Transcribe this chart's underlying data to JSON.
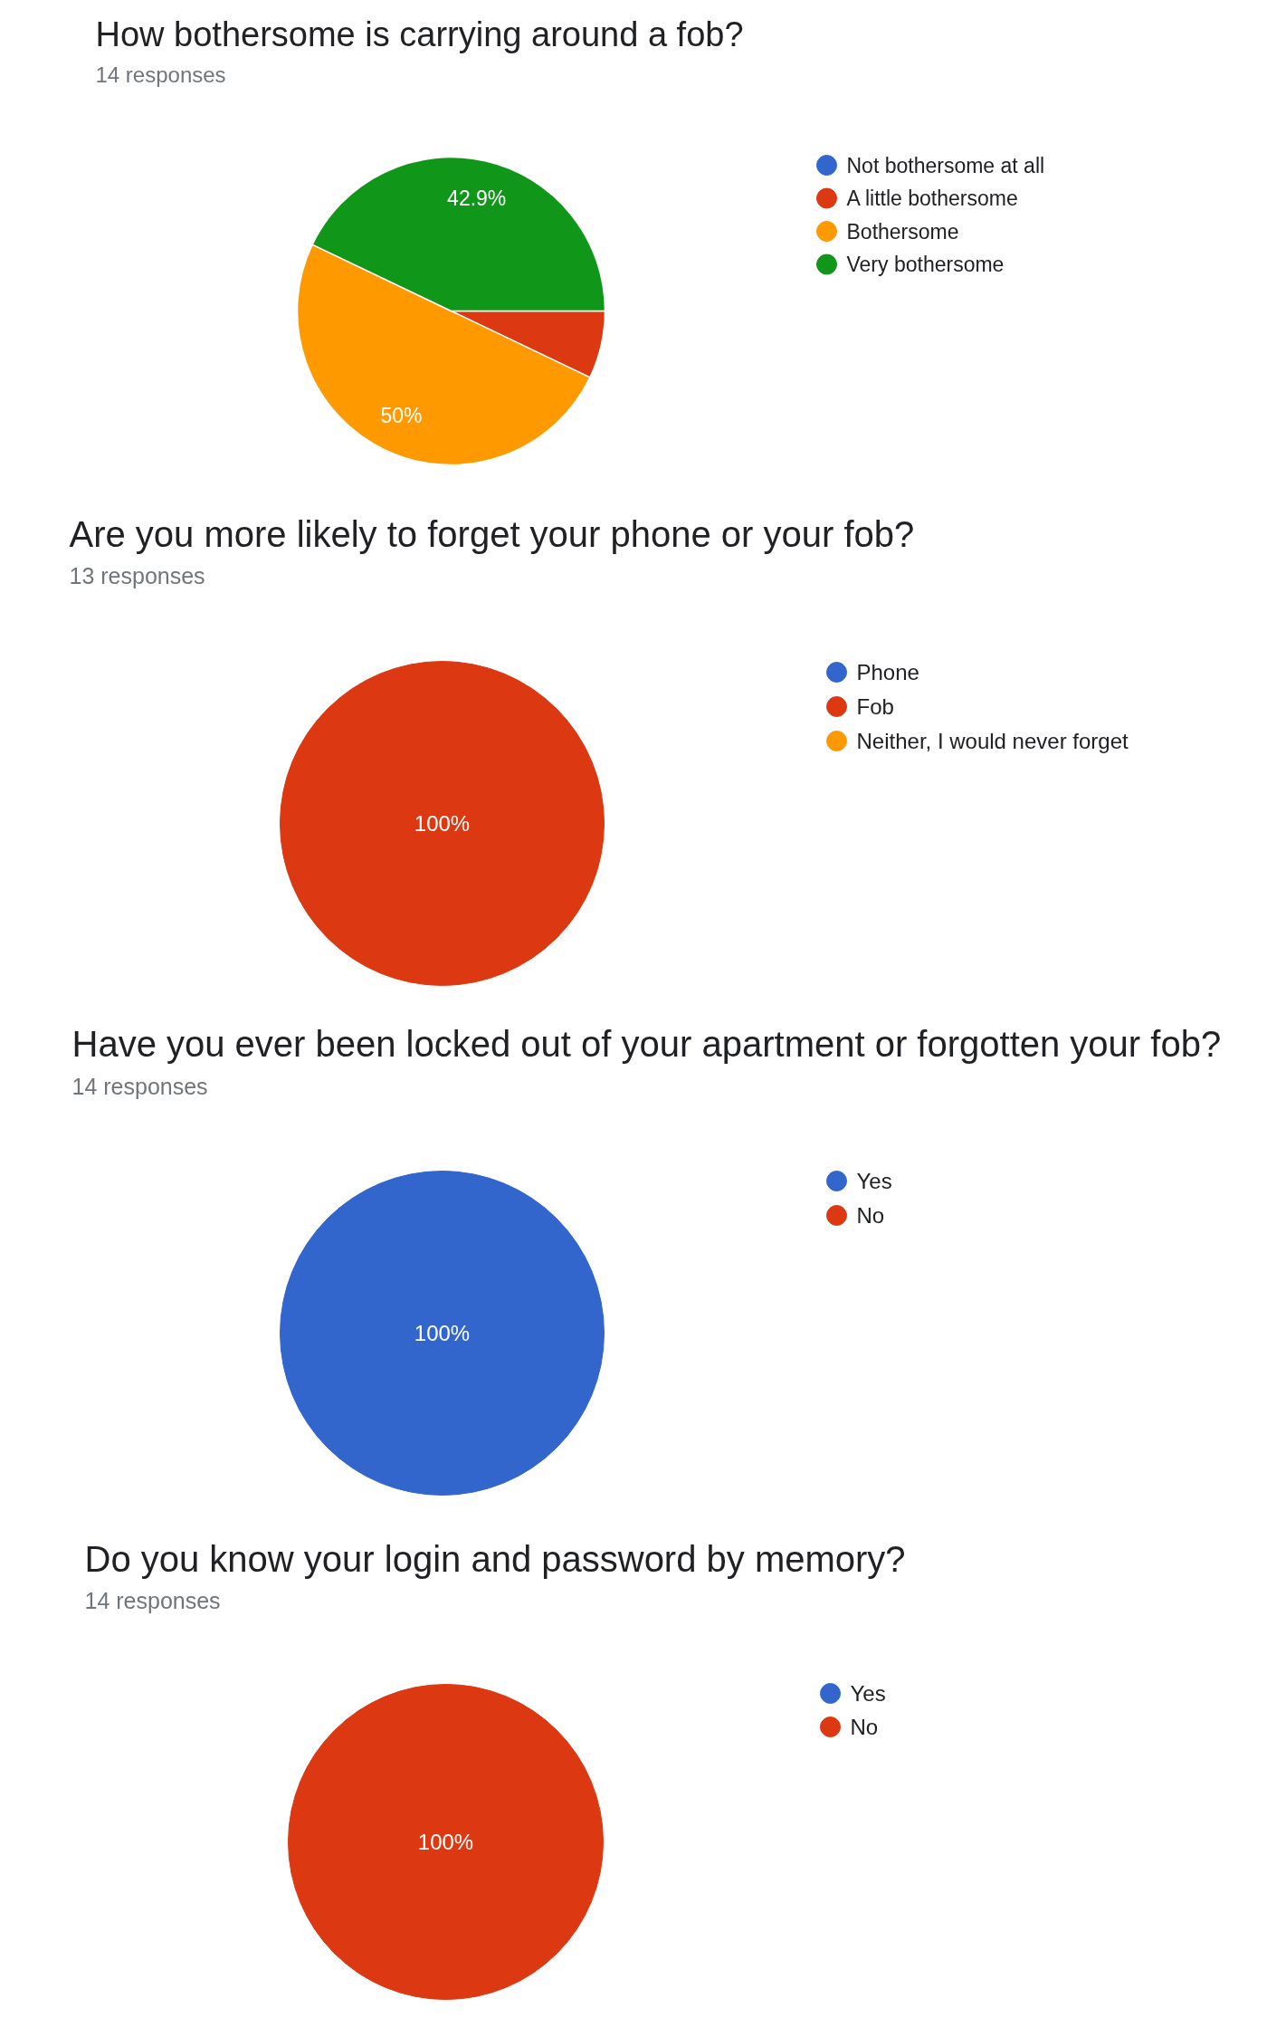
{
  "chart_data": [
    {
      "type": "pie",
      "title": "How bothersome is carrying around a fob?",
      "subtitle": "14 responses",
      "categories": [
        "Not bothersome at all",
        "A little bothersome",
        "Bothersome",
        "Very bothersome"
      ],
      "values": [
        0,
        7.1,
        50,
        42.9
      ],
      "colors": [
        "#3366cc",
        "#dc3912",
        "#ff9900",
        "#109618"
      ],
      "value_labels": [
        null,
        null,
        "50%",
        "42.9%"
      ],
      "legend": "right"
    },
    {
      "type": "pie",
      "title": "Are you more likely to forget your phone or your fob?",
      "subtitle": "13 responses",
      "categories": [
        "Phone",
        "Fob",
        "Neither, I would never forget"
      ],
      "values": [
        0,
        100,
        0
      ],
      "colors": [
        "#3366cc",
        "#dc3912",
        "#ff9900"
      ],
      "value_labels": [
        null,
        "100%",
        null
      ],
      "legend": "right"
    },
    {
      "type": "pie",
      "title": "Have you ever been locked out of your apartment or forgotten your fob?",
      "subtitle": "14 responses",
      "categories": [
        "Yes",
        "No"
      ],
      "values": [
        100,
        0
      ],
      "colors": [
        "#3366cc",
        "#dc3912"
      ],
      "value_labels": [
        "100%",
        null
      ],
      "legend": "right"
    },
    {
      "type": "pie",
      "title": "Do you know your login and password by memory?",
      "subtitle": "14 responses",
      "categories": [
        "Yes",
        "No"
      ],
      "values": [
        0,
        100
      ],
      "colors": [
        "#3366cc",
        "#dc3912"
      ],
      "value_labels": [
        null,
        "100%"
      ],
      "legend": "right"
    }
  ]
}
